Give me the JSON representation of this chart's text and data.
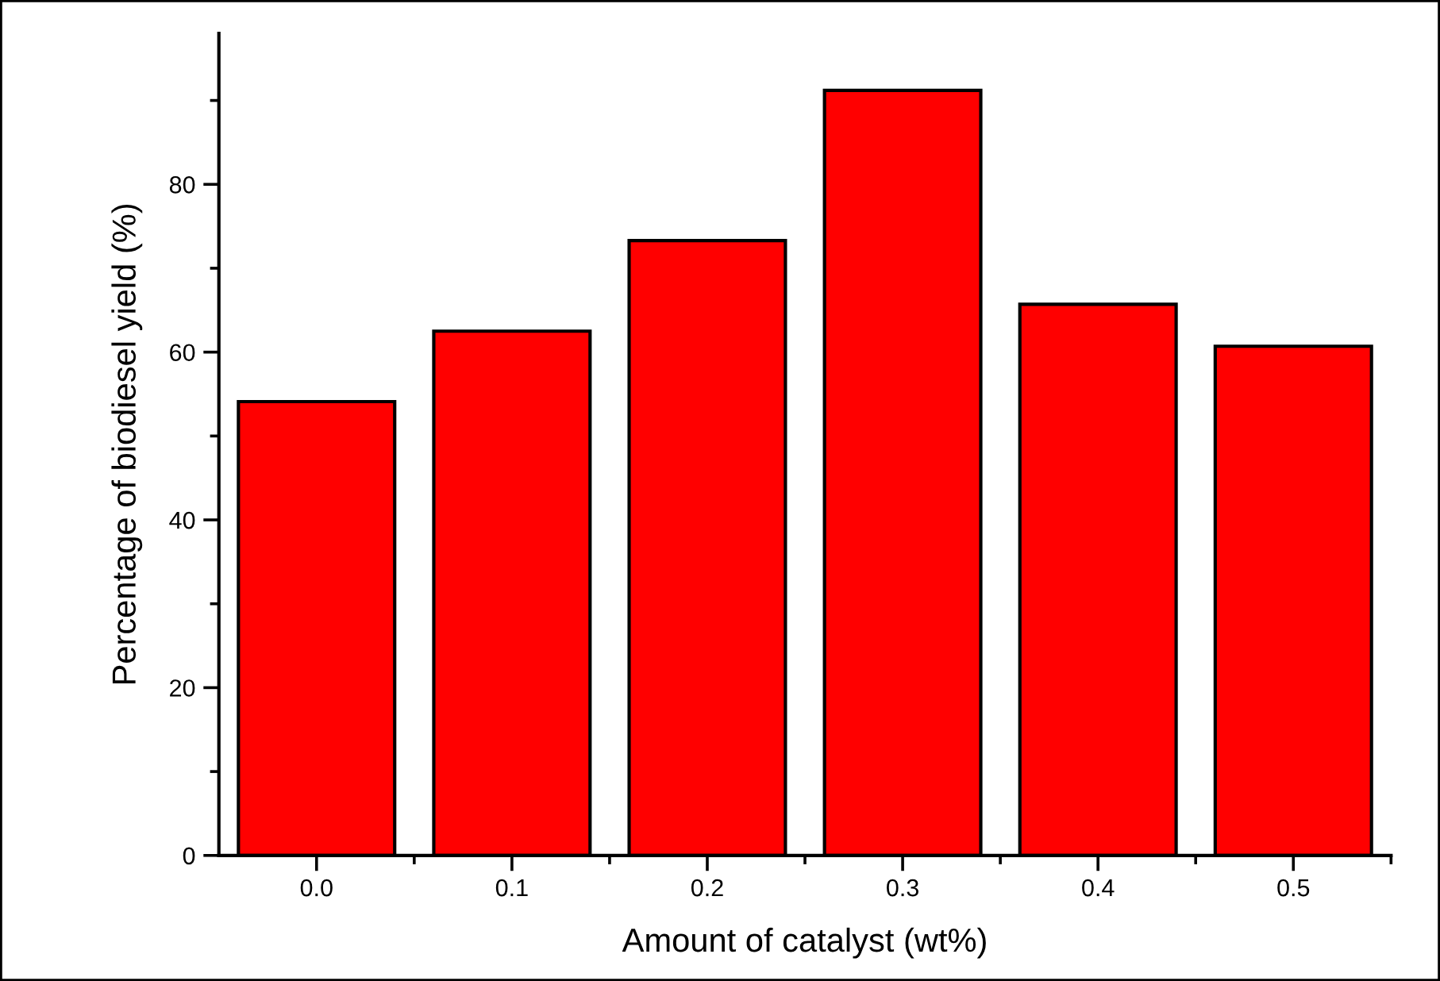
{
  "chart_data": {
    "type": "bar",
    "xlabel": "Amount of catalyst (wt%)",
    "ylabel": "Percentage of biodiesel yield (%)",
    "categories": [
      "0.0",
      "0.1",
      "0.2",
      "0.3",
      "0.4",
      "0.5"
    ],
    "values": [
      54.1,
      62.5,
      73.3,
      91.2,
      65.7,
      60.7
    ],
    "color": "#ff0000",
    "ylim": [
      0,
      98
    ],
    "yticks": [
      0,
      20,
      40,
      60,
      80
    ],
    "grid": false,
    "legend": false
  }
}
